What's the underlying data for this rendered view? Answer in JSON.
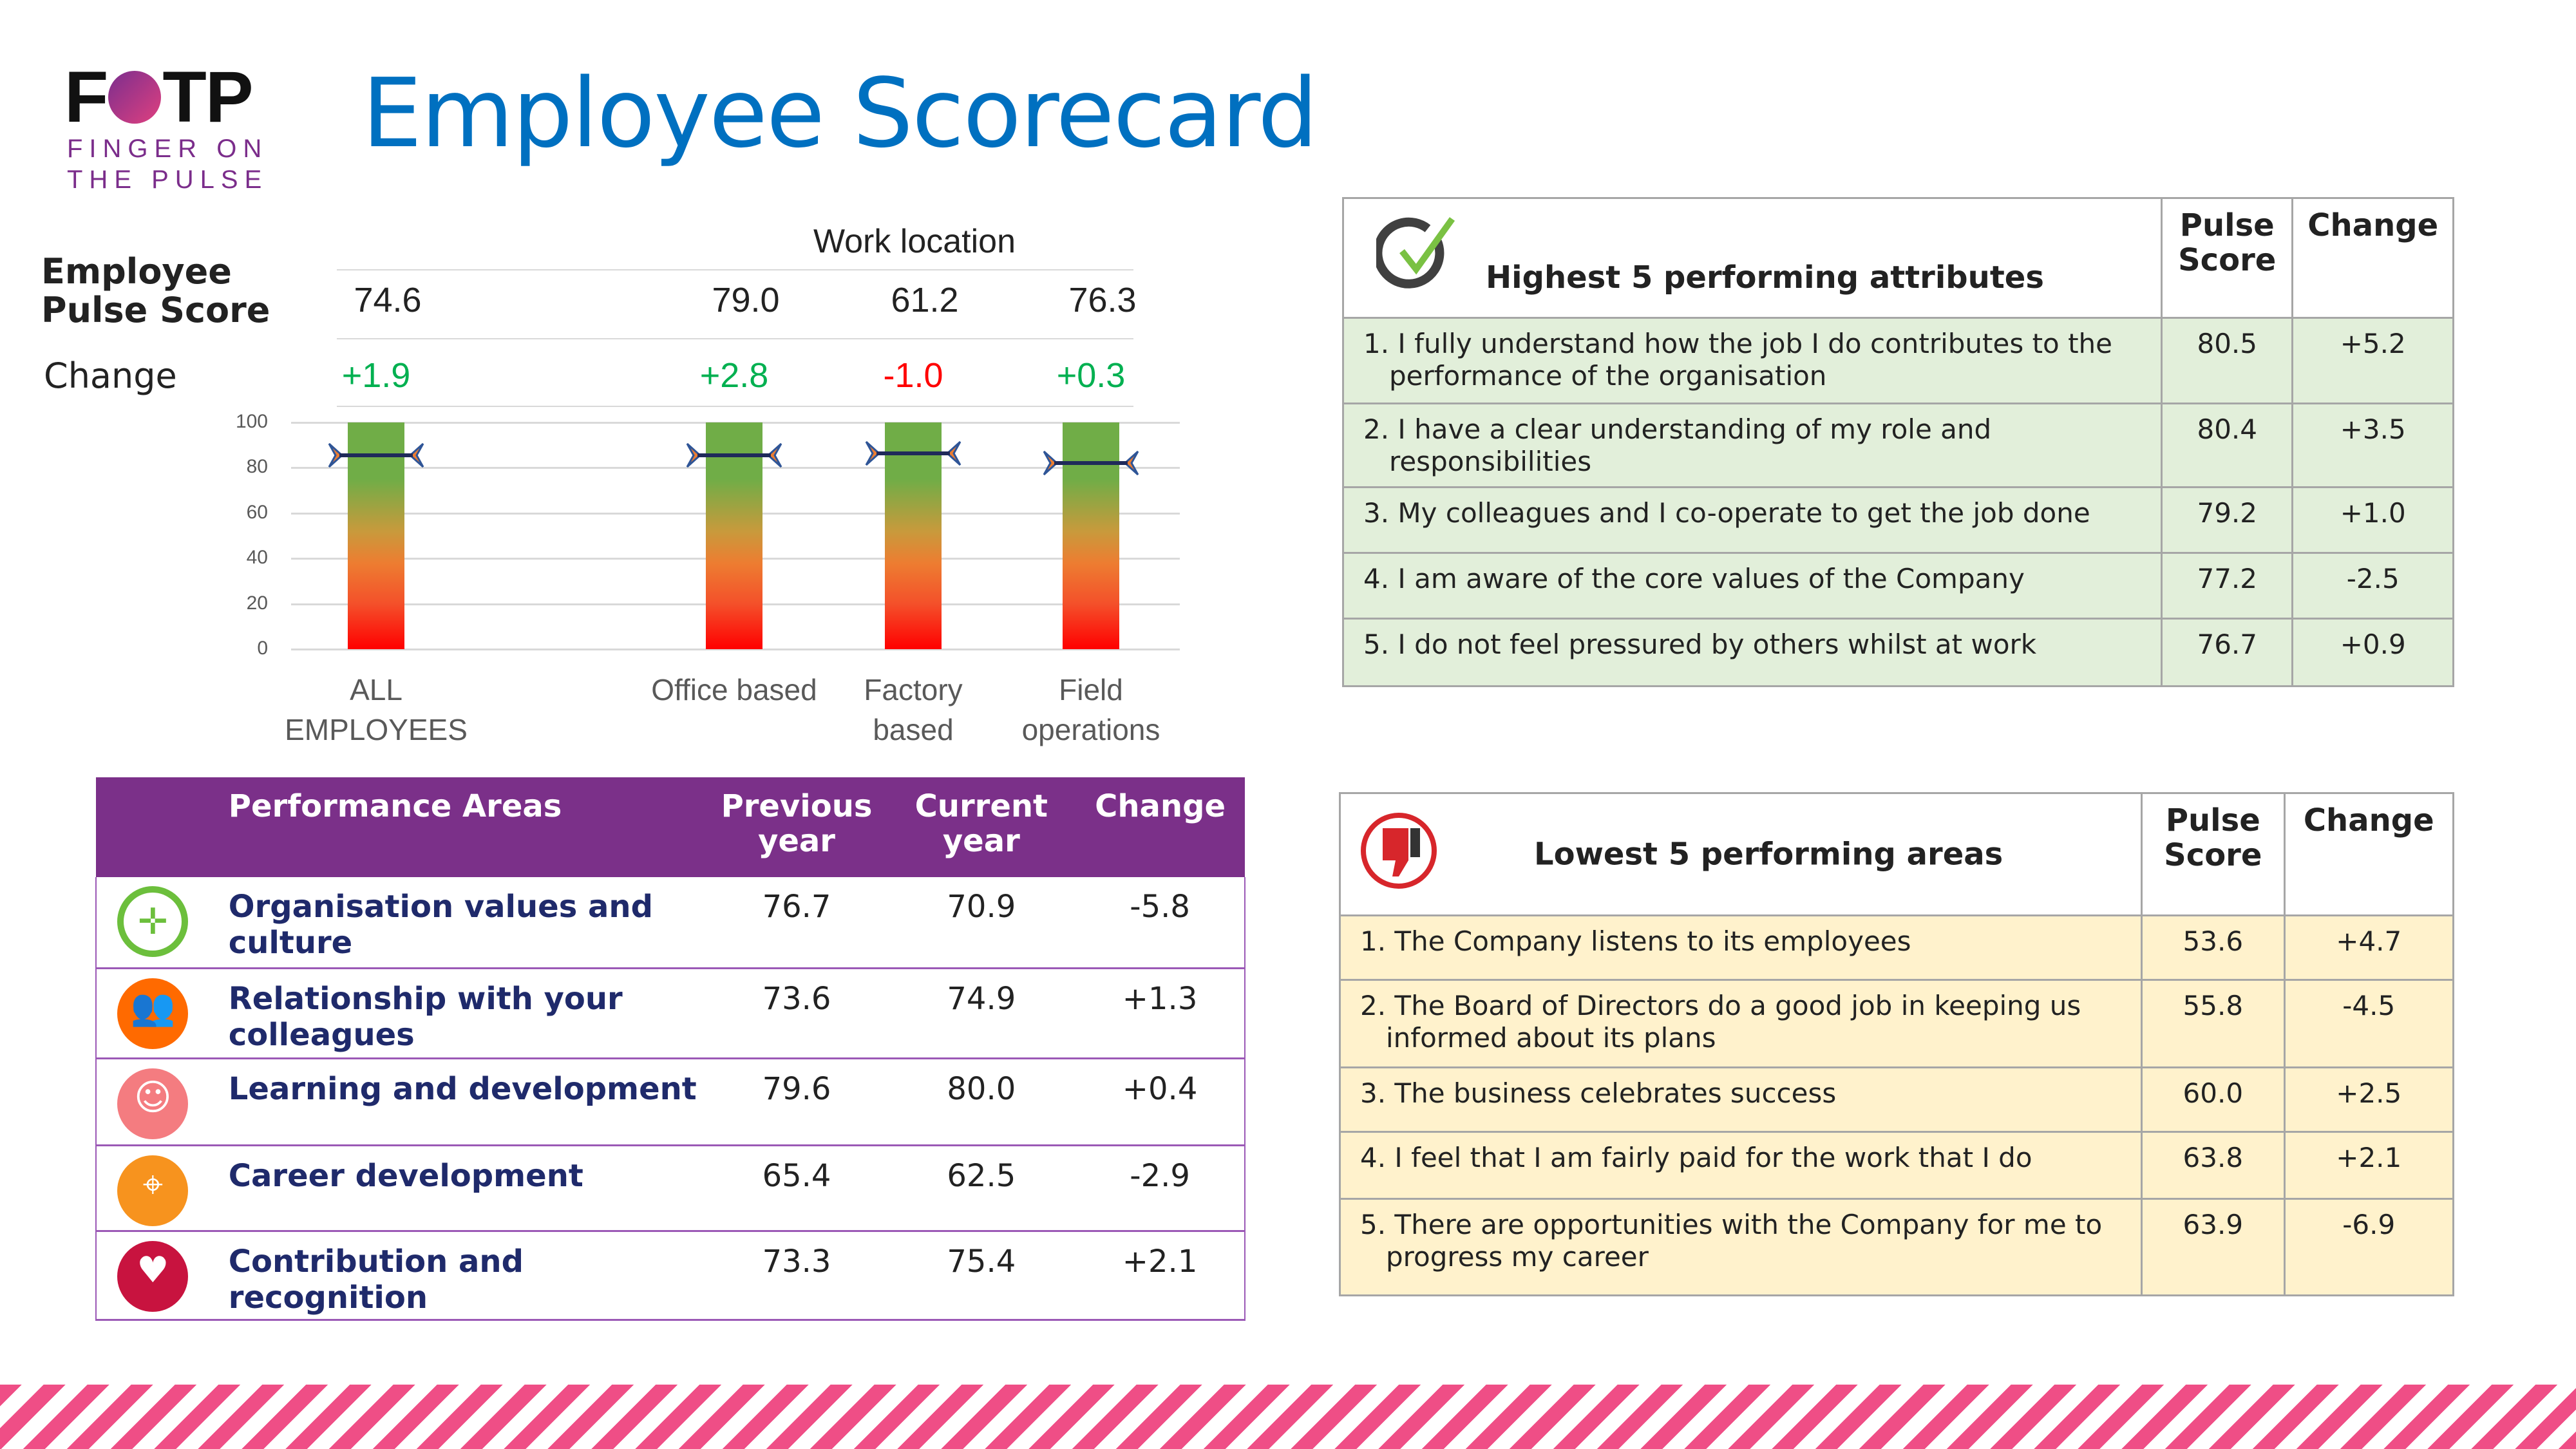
{
  "logo": {
    "mark": "FOTP",
    "line1": "FINGER ON",
    "line2": "THE PULSE"
  },
  "title": "Employee Scorecard",
  "summary": {
    "group_label": "Work location",
    "score_label": "Employee Pulse Score",
    "change_label": "Change",
    "columns": [
      {
        "name": "ALL EMPLOYEES",
        "score": "74.6",
        "change": "+1.9",
        "change_color": "#00b050"
      },
      {
        "name": "Office based",
        "score": "79.0",
        "change": "+2.8",
        "change_color": "#00b050"
      },
      {
        "name": "Factory based",
        "score": "61.2",
        "change": "-1.0",
        "change_color": "#ff0000"
      },
      {
        "name": "Field operations",
        "score": "76.3",
        "change": "+0.3",
        "change_color": "#00b050"
      }
    ]
  },
  "chart_data": {
    "type": "bar",
    "categories": [
      "ALL EMPLOYEES",
      "Office based",
      "Factory based",
      "Field operations"
    ],
    "values": [
      100,
      100,
      100,
      100
    ],
    "markers": [
      85.5,
      85.5,
      86.5,
      82
    ],
    "ylim": [
      0,
      100
    ],
    "yticks": [
      "0",
      "20",
      "40",
      "60",
      "80",
      "100"
    ],
    "grid": true,
    "bar_gradient": [
      "#70ad47",
      "#ed7d31",
      "#ff0000"
    ]
  },
  "performance": {
    "headers": [
      "Performance Areas",
      "Previous year",
      "Current year",
      "Change"
    ],
    "rows": [
      {
        "icon": "compass-icon",
        "color": "#6cbf3c",
        "name": "Organisation values and culture",
        "prev": "76.7",
        "curr": "70.9",
        "change": "-5.8"
      },
      {
        "icon": "people-icon",
        "color": "#ff6a00",
        "name": "Relationship with your colleagues",
        "prev": "73.6",
        "curr": "74.9",
        "change": "+1.3"
      },
      {
        "icon": "reader-icon",
        "color": "#f47c80",
        "name": "Learning and development",
        "prev": "79.6",
        "curr": "80.0",
        "change": "+0.4"
      },
      {
        "icon": "map-pin-icon",
        "color": "#f7931e",
        "name": "Career development",
        "prev": "65.4",
        "curr": "62.5",
        "change": "-2.9"
      },
      {
        "icon": "heart-hands-icon",
        "color": "#c8133f",
        "name": "Contribution and recognition",
        "prev": "73.3",
        "curr": "75.4",
        "change": "+2.1"
      }
    ]
  },
  "highest": {
    "title": "Highest 5 performing attributes",
    "score_header": "Pulse Score",
    "change_header": "Change",
    "rows": [
      {
        "text": "1. I fully understand how the job I do contributes to the performance of the organisation",
        "score": "80.5",
        "change": "+5.2"
      },
      {
        "text": "2. I have a clear understanding of my role and responsibilities",
        "score": "80.4",
        "change": "+3.5"
      },
      {
        "text": "3. My colleagues and I co-operate to get the job done",
        "score": "79.2",
        "change": "+1.0"
      },
      {
        "text": "4. I am aware of the core values of the Company",
        "score": "77.2",
        "change": "-2.5"
      },
      {
        "text": "5. I do not feel pressured by others whilst at work",
        "score": "76.7",
        "change": "+0.9"
      }
    ]
  },
  "lowest": {
    "title": "Lowest 5 performing areas",
    "score_header": "Pulse Score",
    "change_header": "Change",
    "rows": [
      {
        "text": "1. The Company listens to its employees",
        "score": "53.6",
        "change": "+4.7"
      },
      {
        "text": "2. The Board of Directors do a good job in keeping us informed about its plans",
        "score": "55.8",
        "change": "-4.5"
      },
      {
        "text": "3. The business celebrates success",
        "score": "60.0",
        "change": "+2.5"
      },
      {
        "text": "4. I feel that I am fairly paid for the work that I do",
        "score": "63.8",
        "change": "+2.1"
      },
      {
        "text": "5. There are opportunities with the Company for me to progress my career",
        "score": "63.9",
        "change": "-6.9"
      }
    ]
  }
}
